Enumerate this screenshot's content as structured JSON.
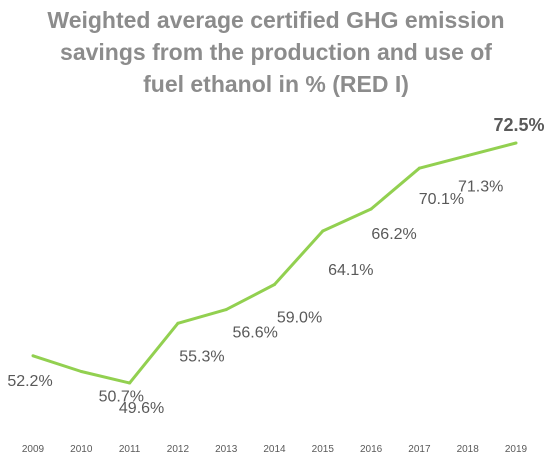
{
  "chart_data": {
    "type": "line",
    "title_lines": [
      "Weighted average certified GHG emission",
      "savings from the production and use of",
      "fuel ethanol in % (RED I)"
    ],
    "categories": [
      "2009",
      "2010",
      "2011",
      "2012",
      "2013",
      "2014",
      "2015",
      "2016",
      "2017",
      "2018",
      "2019"
    ],
    "values": [
      52.2,
      50.7,
      49.6,
      55.3,
      56.6,
      59.0,
      64.1,
      66.2,
      70.1,
      71.3,
      72.5
    ],
    "data_labels": [
      "52.2%",
      "50.7%",
      "49.6%",
      "55.3%",
      "56.6%",
      "59.0%",
      "64.1%",
      "66.2%",
      "70.1%",
      "71.3%",
      "72.5%"
    ],
    "line_color": "#92d050",
    "grid": false,
    "legend": "none"
  }
}
